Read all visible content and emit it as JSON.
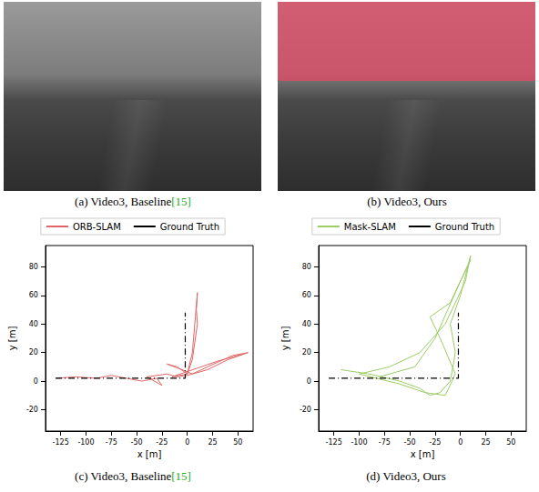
{
  "images": [
    {
      "caption": "(a) Video3, Baseline[15]",
      "mask": false
    },
    {
      "caption": "(b) Video3, Ours",
      "mask": true
    }
  ],
  "chart_data": [
    {
      "type": "line",
      "caption": "(c) Video3, Baseline[15]",
      "xlabel": "x [m]",
      "ylabel": "y [m]",
      "xlim": [
        -140,
        65
      ],
      "ylim": [
        -35,
        95
      ],
      "xticks": [
        -125,
        -100,
        -75,
        -50,
        -25,
        0,
        25,
        50
      ],
      "yticks": [
        -20,
        0,
        20,
        40,
        60,
        80
      ],
      "legend": "top",
      "grid": false,
      "series": [
        {
          "name": "ORB-SLAM",
          "color": "#e06666",
          "line_style": "solid",
          "x": [
            -130,
            -110,
            -90,
            -75,
            -60,
            -45,
            -30,
            -25,
            -40,
            -20,
            -10,
            0,
            20,
            40,
            60,
            45,
            20,
            5,
            -5,
            -20,
            -10,
            0,
            5,
            8,
            10,
            9,
            10,
            8,
            5,
            0,
            -15,
            30,
            55
          ],
          "values": [
            2,
            3,
            2,
            4,
            2,
            0,
            2,
            -3,
            3,
            5,
            3,
            4,
            8,
            15,
            20,
            18,
            10,
            5,
            8,
            12,
            10,
            5,
            15,
            30,
            40,
            50,
            62,
            45,
            20,
            5,
            3,
            14,
            19
          ]
        },
        {
          "name": "Ground Truth",
          "color": "#000000",
          "line_style": "dashdot",
          "x": [
            -130,
            -2,
            -2
          ],
          "values": [
            2,
            2,
            48
          ]
        }
      ]
    },
    {
      "type": "line",
      "caption": "(d) Video3, Ours",
      "xlabel": "x [m]",
      "ylabel": "y [m]",
      "xlim": [
        -140,
        65
      ],
      "ylim": [
        -35,
        95
      ],
      "xticks": [
        -125,
        -100,
        -75,
        -50,
        -25,
        0,
        25,
        50
      ],
      "yticks": [
        -20,
        0,
        20,
        40,
        60,
        80
      ],
      "legend": "top",
      "grid": false,
      "series": [
        {
          "name": "Mask-SLAM",
          "color": "#9ccc65",
          "line_style": "solid",
          "x": [
            -118,
            -90,
            -60,
            -40,
            -30,
            -20,
            -10,
            -5,
            -10,
            0,
            10,
            5,
            -15,
            -40,
            -70,
            -100,
            -60,
            -35,
            -15,
            -5,
            -20,
            -30,
            -10,
            10,
            0,
            -25,
            -45,
            -80
          ],
          "values": [
            8,
            5,
            0,
            -5,
            -10,
            -8,
            0,
            20,
            40,
            60,
            88,
            70,
            40,
            20,
            10,
            5,
            -2,
            -8,
            -10,
            5,
            30,
            45,
            55,
            85,
            70,
            30,
            10,
            3
          ]
        },
        {
          "name": "Ground Truth",
          "color": "#000000",
          "line_style": "dashdot",
          "x": [
            -130,
            -2,
            -2
          ],
          "values": [
            2,
            2,
            48
          ]
        }
      ]
    }
  ]
}
